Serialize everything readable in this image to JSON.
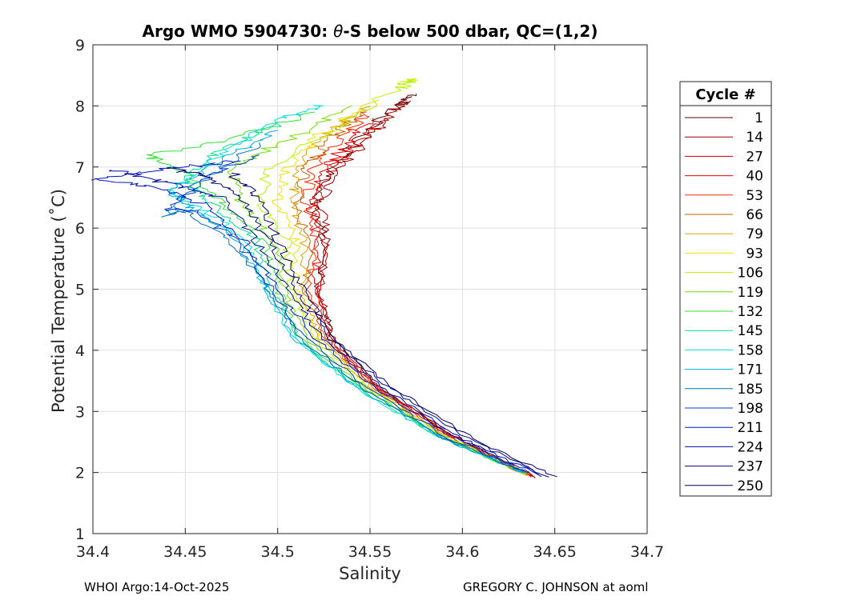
{
  "chart_data": {
    "type": "line",
    "title_prefix": "Argo WMO 5904730: ",
    "title_theta": "θ",
    "title_suffix": "-S below 500 dbar,  QC=(1,2)",
    "xlabel": "Salinity",
    "ylabel": "Potential Temperature (˚C)",
    "xlim": [
      34.4,
      34.7
    ],
    "ylim": [
      1,
      9
    ],
    "xticks": [
      34.4,
      34.45,
      34.5,
      34.55,
      34.6,
      34.65,
      34.7
    ],
    "xtick_labels": [
      "34.4",
      "34.45",
      "34.5",
      "34.55",
      "34.6",
      "34.65",
      "34.7"
    ],
    "yticks": [
      1,
      2,
      3,
      4,
      5,
      6,
      7,
      8,
      9
    ],
    "ytick_labels": [
      "1",
      "2",
      "3",
      "4",
      "5",
      "6",
      "7",
      "8",
      "9"
    ],
    "grid": true,
    "legend_title": "Cycle #",
    "legend_position": "right, outside",
    "legend": [
      {
        "label": "1",
        "color": "#5a0000"
      },
      {
        "label": "14",
        "color": "#9a0000"
      },
      {
        "label": "27",
        "color": "#cc0000"
      },
      {
        "label": "40",
        "color": "#e60000"
      },
      {
        "label": "53",
        "color": "#ff2a00"
      },
      {
        "label": "66",
        "color": "#c06400"
      },
      {
        "label": "79",
        "color": "#e0a000"
      },
      {
        "label": "93",
        "color": "#f0e000"
      },
      {
        "label": "106",
        "color": "#b8f000"
      },
      {
        "label": "119",
        "color": "#70e000"
      },
      {
        "label": "132",
        "color": "#30e030"
      },
      {
        "label": "145",
        "color": "#00e090"
      },
      {
        "label": "158",
        "color": "#00e0e0"
      },
      {
        "label": "171",
        "color": "#00b0e0"
      },
      {
        "label": "185",
        "color": "#0070c0"
      },
      {
        "label": "198",
        "color": "#0040d0"
      },
      {
        "label": "211",
        "color": "#0018c0"
      },
      {
        "label": "224",
        "color": "#000fa0"
      },
      {
        "label": "237",
        "color": "#000a80"
      },
      {
        "label": "250",
        "color": "#00006a"
      }
    ],
    "series": [
      {
        "name": "1",
        "points": [
          [
            34.639,
            1.92
          ],
          [
            34.595,
            2.6
          ],
          [
            34.555,
            3.4
          ],
          [
            34.53,
            4.2
          ],
          [
            34.522,
            5.0
          ],
          [
            34.525,
            5.8
          ],
          [
            34.52,
            6.4
          ],
          [
            34.53,
            7.0
          ],
          [
            34.545,
            7.5
          ],
          [
            34.565,
            8.0
          ],
          [
            34.575,
            8.2
          ]
        ]
      },
      {
        "name": "14",
        "points": [
          [
            34.638,
            1.93
          ],
          [
            34.594,
            2.6
          ],
          [
            34.554,
            3.4
          ],
          [
            34.53,
            4.2
          ],
          [
            34.523,
            5.0
          ],
          [
            34.527,
            5.8
          ],
          [
            34.523,
            6.4
          ],
          [
            34.532,
            7.0
          ],
          [
            34.548,
            7.4
          ],
          [
            34.562,
            7.9
          ],
          [
            34.57,
            8.1
          ]
        ]
      },
      {
        "name": "27",
        "points": [
          [
            34.638,
            1.93
          ],
          [
            34.594,
            2.6
          ],
          [
            34.553,
            3.4
          ],
          [
            34.528,
            4.2
          ],
          [
            34.522,
            5.0
          ],
          [
            34.526,
            5.8
          ],
          [
            34.521,
            6.4
          ],
          [
            34.53,
            7.0
          ],
          [
            34.545,
            7.4
          ],
          [
            34.558,
            7.8
          ]
        ]
      },
      {
        "name": "40",
        "points": [
          [
            34.637,
            1.94
          ],
          [
            34.593,
            2.6
          ],
          [
            34.553,
            3.4
          ],
          [
            34.527,
            4.2
          ],
          [
            34.52,
            5.0
          ],
          [
            34.522,
            5.8
          ],
          [
            34.518,
            6.4
          ],
          [
            34.525,
            7.0
          ],
          [
            34.54,
            7.4
          ],
          [
            34.552,
            7.8
          ]
        ]
      },
      {
        "name": "53",
        "points": [
          [
            34.637,
            1.94
          ],
          [
            34.592,
            2.6
          ],
          [
            34.552,
            3.4
          ],
          [
            34.526,
            4.2
          ],
          [
            34.517,
            5.0
          ],
          [
            34.52,
            5.8
          ],
          [
            34.515,
            6.4
          ],
          [
            34.52,
            7.0
          ],
          [
            34.535,
            7.5
          ],
          [
            34.548,
            7.9
          ]
        ]
      },
      {
        "name": "66",
        "points": [
          [
            34.636,
            1.95
          ],
          [
            34.591,
            2.6
          ],
          [
            34.551,
            3.4
          ],
          [
            34.525,
            4.2
          ],
          [
            34.515,
            5.0
          ],
          [
            34.517,
            5.8
          ],
          [
            34.51,
            6.4
          ],
          [
            34.515,
            7.0
          ],
          [
            34.53,
            7.5
          ],
          [
            34.545,
            7.9
          ]
        ]
      },
      {
        "name": "79",
        "points": [
          [
            34.636,
            1.95
          ],
          [
            34.59,
            2.6
          ],
          [
            34.55,
            3.4
          ],
          [
            34.523,
            4.2
          ],
          [
            34.513,
            5.0
          ],
          [
            34.514,
            5.8
          ],
          [
            34.508,
            6.4
          ],
          [
            34.512,
            7.0
          ],
          [
            34.528,
            7.6
          ],
          [
            34.55,
            8.0
          ]
        ]
      },
      {
        "name": "93",
        "points": [
          [
            34.635,
            1.96
          ],
          [
            34.59,
            2.6
          ],
          [
            34.549,
            3.4
          ],
          [
            34.522,
            4.2
          ],
          [
            34.51,
            5.0
          ],
          [
            34.51,
            5.8
          ],
          [
            34.5,
            6.4
          ],
          [
            34.505,
            7.0
          ],
          [
            34.525,
            7.6
          ],
          [
            34.555,
            8.1
          ]
        ]
      },
      {
        "name": "106",
        "points": [
          [
            34.635,
            1.97
          ],
          [
            34.589,
            2.6
          ],
          [
            34.548,
            3.4
          ],
          [
            34.52,
            4.2
          ],
          [
            34.507,
            5.0
          ],
          [
            34.505,
            5.8
          ],
          [
            34.49,
            6.4
          ],
          [
            34.495,
            7.0
          ],
          [
            34.53,
            7.6
          ],
          [
            34.565,
            8.3
          ],
          [
            34.575,
            8.45
          ]
        ]
      },
      {
        "name": "119",
        "points": [
          [
            34.634,
            1.97
          ],
          [
            34.588,
            2.6
          ],
          [
            34.546,
            3.4
          ],
          [
            34.515,
            4.2
          ],
          [
            34.503,
            5.0
          ],
          [
            34.498,
            5.8
          ],
          [
            34.48,
            6.4
          ],
          [
            34.475,
            7.0
          ],
          [
            34.51,
            7.5
          ],
          [
            34.54,
            8.0
          ]
        ]
      },
      {
        "name": "132",
        "points": [
          [
            34.634,
            1.98
          ],
          [
            34.587,
            2.6
          ],
          [
            34.545,
            3.4
          ],
          [
            34.512,
            4.2
          ],
          [
            34.5,
            5.0
          ],
          [
            34.492,
            5.8
          ],
          [
            34.47,
            6.4
          ],
          [
            34.45,
            6.9
          ],
          [
            34.43,
            7.2
          ],
          [
            34.48,
            7.5
          ],
          [
            34.52,
            7.9
          ]
        ]
      },
      {
        "name": "145",
        "points": [
          [
            34.633,
            1.99
          ],
          [
            34.586,
            2.6
          ],
          [
            34.543,
            3.4
          ],
          [
            34.51,
            4.2
          ],
          [
            34.497,
            5.0
          ],
          [
            34.488,
            5.8
          ],
          [
            34.465,
            6.4
          ],
          [
            34.45,
            6.8
          ],
          [
            34.47,
            7.3
          ],
          [
            34.5,
            7.7
          ]
        ]
      },
      {
        "name": "158",
        "points": [
          [
            34.633,
            2.0
          ],
          [
            34.586,
            2.6
          ],
          [
            34.542,
            3.4
          ],
          [
            34.508,
            4.2
          ],
          [
            34.494,
            5.0
          ],
          [
            34.483,
            5.8
          ],
          [
            34.46,
            6.3
          ],
          [
            34.44,
            6.6
          ],
          [
            34.47,
            7.2
          ],
          [
            34.5,
            7.8
          ],
          [
            34.525,
            8.0
          ]
        ]
      },
      {
        "name": "171",
        "points": [
          [
            34.633,
            2.0
          ],
          [
            34.587,
            2.6
          ],
          [
            34.543,
            3.4
          ],
          [
            34.509,
            4.2
          ],
          [
            34.493,
            5.0
          ],
          [
            34.478,
            5.8
          ],
          [
            34.455,
            6.3
          ],
          [
            34.44,
            6.6
          ],
          [
            34.47,
            7.1
          ],
          [
            34.5,
            7.6
          ]
        ]
      },
      {
        "name": "185",
        "points": [
          [
            34.634,
            1.99
          ],
          [
            34.588,
            2.6
          ],
          [
            34.545,
            3.4
          ],
          [
            34.512,
            4.2
          ],
          [
            34.495,
            5.0
          ],
          [
            34.475,
            5.8
          ],
          [
            34.45,
            6.3
          ],
          [
            34.44,
            6.2
          ],
          [
            34.46,
            6.8
          ],
          [
            34.49,
            7.4
          ]
        ]
      },
      {
        "name": "198",
        "points": [
          [
            34.636,
            1.98
          ],
          [
            34.59,
            2.6
          ],
          [
            34.548,
            3.4
          ],
          [
            34.515,
            4.2
          ],
          [
            34.497,
            5.0
          ],
          [
            34.478,
            5.8
          ],
          [
            34.455,
            6.3
          ],
          [
            34.44,
            6.3
          ],
          [
            34.465,
            6.9
          ],
          [
            34.49,
            7.2
          ]
        ]
      },
      {
        "name": "211",
        "points": [
          [
            34.64,
            1.96
          ],
          [
            34.594,
            2.6
          ],
          [
            34.552,
            3.4
          ],
          [
            34.52,
            4.2
          ],
          [
            34.5,
            5.0
          ],
          [
            34.482,
            5.8
          ],
          [
            34.46,
            6.4
          ],
          [
            34.43,
            6.7
          ],
          [
            34.4,
            6.8
          ],
          [
            34.45,
            7.0
          ],
          [
            34.48,
            7.1
          ]
        ]
      },
      {
        "name": "224",
        "points": [
          [
            34.643,
            1.95
          ],
          [
            34.597,
            2.6
          ],
          [
            34.556,
            3.4
          ],
          [
            34.524,
            4.2
          ],
          [
            34.505,
            5.0
          ],
          [
            34.488,
            5.8
          ],
          [
            34.47,
            6.5
          ],
          [
            34.44,
            6.75
          ],
          [
            34.41,
            6.95
          ]
        ]
      },
      {
        "name": "237",
        "points": [
          [
            34.647,
            1.93
          ],
          [
            34.6,
            2.6
          ],
          [
            34.56,
            3.4
          ],
          [
            34.528,
            4.2
          ],
          [
            34.51,
            5.0
          ],
          [
            34.495,
            5.8
          ],
          [
            34.48,
            6.5
          ],
          [
            34.46,
            6.85
          ],
          [
            34.44,
            7.0
          ]
        ]
      },
      {
        "name": "250",
        "points": [
          [
            34.65,
            1.92
          ],
          [
            34.603,
            2.6
          ],
          [
            34.562,
            3.4
          ],
          [
            34.53,
            4.2
          ],
          [
            34.514,
            5.0
          ],
          [
            34.5,
            5.8
          ],
          [
            34.49,
            6.5
          ],
          [
            34.475,
            6.9
          ]
        ]
      }
    ]
  },
  "footer": {
    "left": "WHOI Argo:14-Oct-2025",
    "right": "GREGORY C. JOHNSON at aoml"
  }
}
